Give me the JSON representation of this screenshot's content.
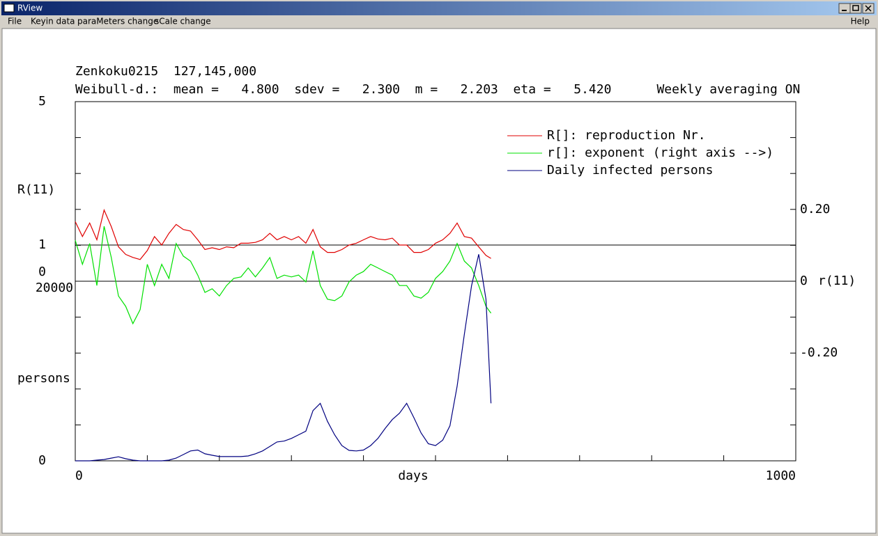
{
  "window": {
    "title": "RView"
  },
  "menu": {
    "items": [
      "File",
      "Keyin data",
      "paraMeters change",
      "sCale change"
    ],
    "help": "Help"
  },
  "chart_data": {
    "type": "line",
    "title": "Zenkoku0215  127,145,000",
    "subtitle": "Weibull-d.:  mean =   4.800  sdev =   2.300  m =   2.203  eta =   5.420      Weekly averaging ON",
    "xlabel": "days",
    "xlim": [
      0,
      1000
    ],
    "xticks": [
      0,
      1000
    ],
    "xtick_marks": [
      0,
      100,
      200,
      300,
      400,
      500,
      600,
      700,
      800,
      900,
      1000
    ],
    "ylabel": "R(11)",
    "ylog": true,
    "ylim": [
      0.0887,
      5
    ],
    "yticks": [
      5,
      1
    ],
    "y2label": "r(11)",
    "y2lim": [
      -0.5,
      0.5
    ],
    "y2ticks": [
      {
        "value": 0.2,
        "label": "0.20"
      },
      0,
      {
        "value": -0.2,
        "label": "-0.20"
      }
    ],
    "y3label": "persons",
    "y3lim": [
      0,
      40000
    ],
    "y3ticks": [
      20000,
      0
    ],
    "y3tick_marks": [
      0,
      4000,
      8000,
      12000,
      16000,
      20000,
      24000,
      28000,
      32000,
      36000,
      40000
    ],
    "annotations": [
      "0"
    ],
    "hlines": [
      {
        "axis": "y",
        "value": 1
      },
      {
        "axis": "y2",
        "value": 0
      }
    ],
    "x": [
      0,
      10,
      20,
      30,
      40,
      50,
      60,
      70,
      80,
      90,
      100,
      110,
      120,
      130,
      140,
      150,
      160,
      170,
      180,
      190,
      200,
      210,
      220,
      230,
      240,
      250,
      260,
      270,
      280,
      290,
      300,
      310,
      320,
      330,
      340,
      350,
      360,
      370,
      380,
      390,
      400,
      410,
      420,
      430,
      440,
      450,
      460,
      470,
      480,
      490,
      500,
      510,
      520,
      530,
      540,
      550,
      560,
      570,
      577
    ],
    "series": [
      {
        "name": "R[]: reproduction Nr.",
        "color": "#e00000",
        "axis": "y",
        "values": [
          1.3,
          1.1,
          1.28,
          1.06,
          1.48,
          1.23,
          0.98,
          0.9,
          0.87,
          0.85,
          0.94,
          1.1,
          1.0,
          1.14,
          1.26,
          1.19,
          1.17,
          1.06,
          0.95,
          0.97,
          0.95,
          0.98,
          0.97,
          1.02,
          1.02,
          1.03,
          1.06,
          1.14,
          1.06,
          1.1,
          1.06,
          1.1,
          1.02,
          1.19,
          0.98,
          0.92,
          0.92,
          0.95,
          1.0,
          1.02,
          1.06,
          1.1,
          1.07,
          1.06,
          1.08,
          1.0,
          1.0,
          0.92,
          0.92,
          0.95,
          1.02,
          1.06,
          1.14,
          1.28,
          1.1,
          1.08,
          0.98,
          0.89,
          0.86
        ]
      },
      {
        "name": "r[]: exponent (right axis -->)",
        "color": "#00e000",
        "axis": "y2",
        "values": [
          0.114,
          0.047,
          0.105,
          -0.012,
          0.153,
          0.066,
          -0.041,
          -0.07,
          -0.118,
          -0.079,
          0.047,
          -0.012,
          0.047,
          0.008,
          0.105,
          0.07,
          0.056,
          0.017,
          -0.031,
          -0.021,
          -0.041,
          -0.012,
          0.008,
          0.012,
          0.037,
          0.012,
          0.037,
          0.066,
          0.008,
          0.017,
          0.012,
          0.017,
          -0.002,
          0.085,
          -0.012,
          -0.05,
          -0.054,
          -0.041,
          -0.002,
          0.017,
          0.027,
          0.047,
          0.037,
          0.027,
          0.017,
          -0.012,
          -0.012,
          -0.041,
          -0.047,
          -0.031,
          0.008,
          0.027,
          0.056,
          0.105,
          0.056,
          0.037,
          -0.012,
          -0.07,
          -0.089
        ]
      },
      {
        "name": "Daily infected persons",
        "color": "#000080",
        "axis": "y3",
        "values": [
          0,
          0,
          0,
          80,
          150,
          300,
          450,
          230,
          80,
          0,
          0,
          0,
          0,
          80,
          300,
          700,
          1100,
          1200,
          780,
          620,
          470,
          470,
          470,
          470,
          540,
          780,
          1100,
          1600,
          2100,
          2200,
          2500,
          2900,
          3300,
          5600,
          6400,
          4400,
          2900,
          1700,
          1160,
          1100,
          1200,
          1700,
          2500,
          3600,
          4600,
          5300,
          6400,
          4800,
          3100,
          1900,
          1700,
          2300,
          3900,
          8300,
          14100,
          19500,
          23000,
          18000,
          6400
        ]
      }
    ]
  }
}
